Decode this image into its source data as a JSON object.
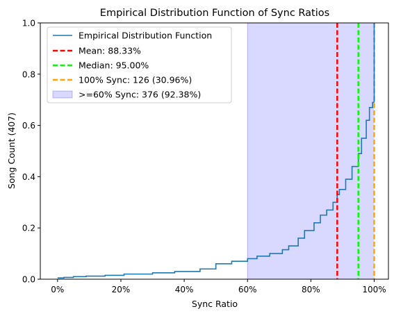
{
  "chart_data": {
    "type": "line",
    "title": "Empirical Distribution Function of Sync Ratios",
    "xlabel": "Sync Ratio",
    "ylabel": "Song Count (407)",
    "xlim": [
      -0.0545,
      1.045
    ],
    "ylim": [
      0,
      1
    ],
    "x_ticks": [
      0,
      0.2,
      0.4,
      0.6,
      0.8,
      1.0
    ],
    "x_tick_labels": [
      "0%",
      "20%",
      "40%",
      "60%",
      "80%",
      "100%"
    ],
    "y_ticks": [
      0,
      0.2,
      0.4,
      0.6,
      0.8,
      1.0
    ],
    "y_tick_labels": [
      "0.0",
      "0.2",
      "0.4",
      "0.6",
      "0.8",
      "1.0"
    ],
    "grid": false,
    "legend_position": "top-left",
    "series": [
      {
        "name": "Empirical Distribution Function",
        "color": "#1f77b4",
        "style": "step",
        "x": [
          0.0,
          0.02,
          0.05,
          0.09,
          0.15,
          0.21,
          0.3,
          0.37,
          0.45,
          0.5,
          0.55,
          0.6,
          0.63,
          0.67,
          0.71,
          0.73,
          0.76,
          0.78,
          0.81,
          0.83,
          0.85,
          0.87,
          0.883,
          0.89,
          0.91,
          0.93,
          0.95,
          0.96,
          0.975,
          0.985,
          0.995,
          1.0
        ],
        "y": [
          0.005,
          0.007,
          0.01,
          0.012,
          0.015,
          0.02,
          0.025,
          0.03,
          0.04,
          0.06,
          0.07,
          0.08,
          0.09,
          0.1,
          0.115,
          0.13,
          0.16,
          0.19,
          0.22,
          0.25,
          0.27,
          0.3,
          0.33,
          0.35,
          0.39,
          0.44,
          0.49,
          0.55,
          0.62,
          0.67,
          0.69,
          0.69
        ]
      }
    ],
    "reference_lines": [
      {
        "name": "Mean: 88.33%",
        "x": 0.8833,
        "color": "#ff0000"
      },
      {
        "name": "Median: 95.00%",
        "x": 0.95,
        "color": "#00ff00"
      },
      {
        "name": "100% Sync: 126 (30.96%)",
        "x": 1.0,
        "color": "#ffa500"
      }
    ],
    "shaded_region": {
      "name": ">=60% Sync: 376 (92.38%)",
      "x_start": 0.6,
      "x_end": 1.0,
      "color": "#0000ff",
      "opacity": 0.15
    },
    "final_jump": {
      "x": 1.0,
      "y_from": 0.69,
      "y_to": 1.0
    }
  }
}
